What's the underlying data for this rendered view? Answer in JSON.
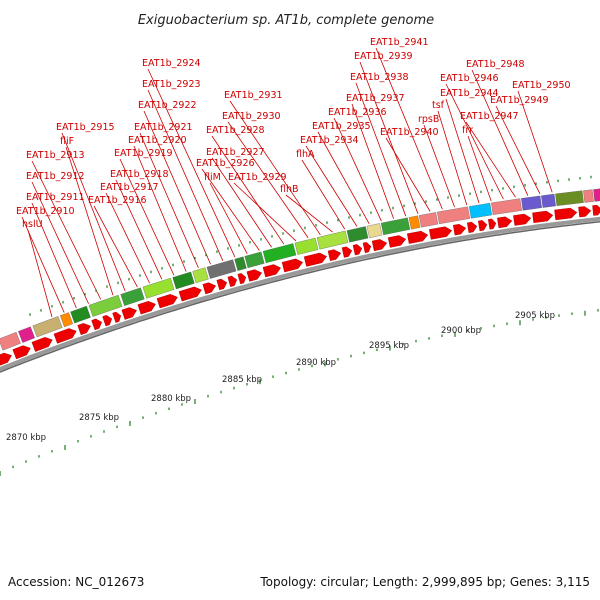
{
  "title": "Exiguobacterium sp. AT1b, complete genome",
  "footer": {
    "accession": "Accession: NC_012673",
    "topology": "Topology: circular; Length: 2,999,895 bp; Genes: 3,115"
  },
  "colors": {
    "label": "#cc0000",
    "arrow": "#ee0000",
    "tick": "#1a7a1a",
    "backbone": "#888888"
  },
  "gene_labels": [
    "hslU",
    "EAT1b_2910",
    "EAT1b_2911",
    "EAT1b_2912",
    "EAT1b_2913",
    "fliF",
    "EAT1b_2915",
    "EAT1b_2916",
    "EAT1b_2917",
    "EAT1b_2918",
    "EAT1b_2919",
    "EAT1b_2920",
    "EAT1b_2921",
    "EAT1b_2922",
    "EAT1b_2923",
    "EAT1b_2924",
    "fliM",
    "EAT1b_2926",
    "EAT1b_2927",
    "EAT1b_2928",
    "EAT1b_2929",
    "EAT1b_2930",
    "EAT1b_2931",
    "flhB",
    "flhA",
    "EAT1b_2934",
    "EAT1b_2935",
    "EAT1b_2936",
    "EAT1b_2937",
    "EAT1b_2938",
    "EAT1b_2939",
    "EAT1b_2940",
    "EAT1b_2941",
    "rpsB",
    "tsf",
    "EAT1b_2944",
    "frr",
    "EAT1b_2946",
    "EAT1b_2947",
    "EAT1b_2948",
    "EAT1b_2949",
    "EAT1b_2950"
  ],
  "scale_labels": [
    "2870 kbp",
    "2875 kbp",
    "2880 kbp",
    "2885 kbp",
    "2890 kbp",
    "2895 kbp",
    "2900 kbp",
    "2905 kbp"
  ],
  "cog_segment_colors": [
    "#f08080",
    "#e0208a",
    "#c8b070",
    "#ff8c00",
    "#228b22",
    "#7ccd3c",
    "#3aa03a",
    "#98e030",
    "#228b22",
    "#a8e040",
    "#707070",
    "#2e8b2e",
    "#3aa03a",
    "#22b022",
    "#98e030",
    "#a8e040",
    "#2e8b2e",
    "#e8d890",
    "#3aa03a",
    "#ff8c00",
    "#f08080",
    "#f08080",
    "#00bfff",
    "#f08080",
    "#6a5acd",
    "#6a5acd",
    "#6b8e23",
    "#f08080",
    "#e0208a"
  ]
}
